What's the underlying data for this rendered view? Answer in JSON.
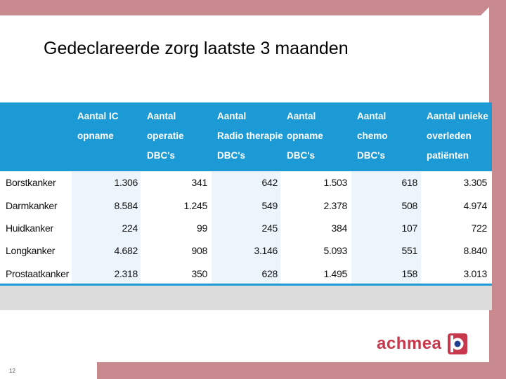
{
  "slide": {
    "title": "Gedeclareerde zorg laatste 3 maanden",
    "page_number": "12",
    "brand": {
      "name": "achmea",
      "color": "#c8384c"
    },
    "header_color": "#1c9ad6"
  },
  "table": {
    "columns": [
      "Aantal IC\nopname",
      "Aantal\noperatie\nDBC's",
      "Aantal\nRadio therapie\nDBC's",
      "Aantal\nopname\nDBC's",
      "Aantal\nchemo\nDBC's",
      "Aantal unieke\noverleden\npatiënten"
    ],
    "rows": [
      {
        "label": "Borstkanker",
        "values": [
          "1.306",
          "341",
          "642",
          "1.503",
          "618",
          "3.305"
        ]
      },
      {
        "label": "Darmkanker",
        "values": [
          "8.584",
          "1.245",
          "549",
          "2.378",
          "508",
          "4.974"
        ]
      },
      {
        "label": "Huidkanker",
        "values": [
          "224",
          "99",
          "245",
          "384",
          "107",
          "722"
        ]
      },
      {
        "label": "Longkanker",
        "values": [
          "4.682",
          "908",
          "3.146",
          "5.093",
          "551",
          "8.840"
        ]
      },
      {
        "label": "Prostaatkanker",
        "values": [
          "2.318",
          "350",
          "628",
          "1.495",
          "158",
          "3.013"
        ]
      }
    ]
  }
}
